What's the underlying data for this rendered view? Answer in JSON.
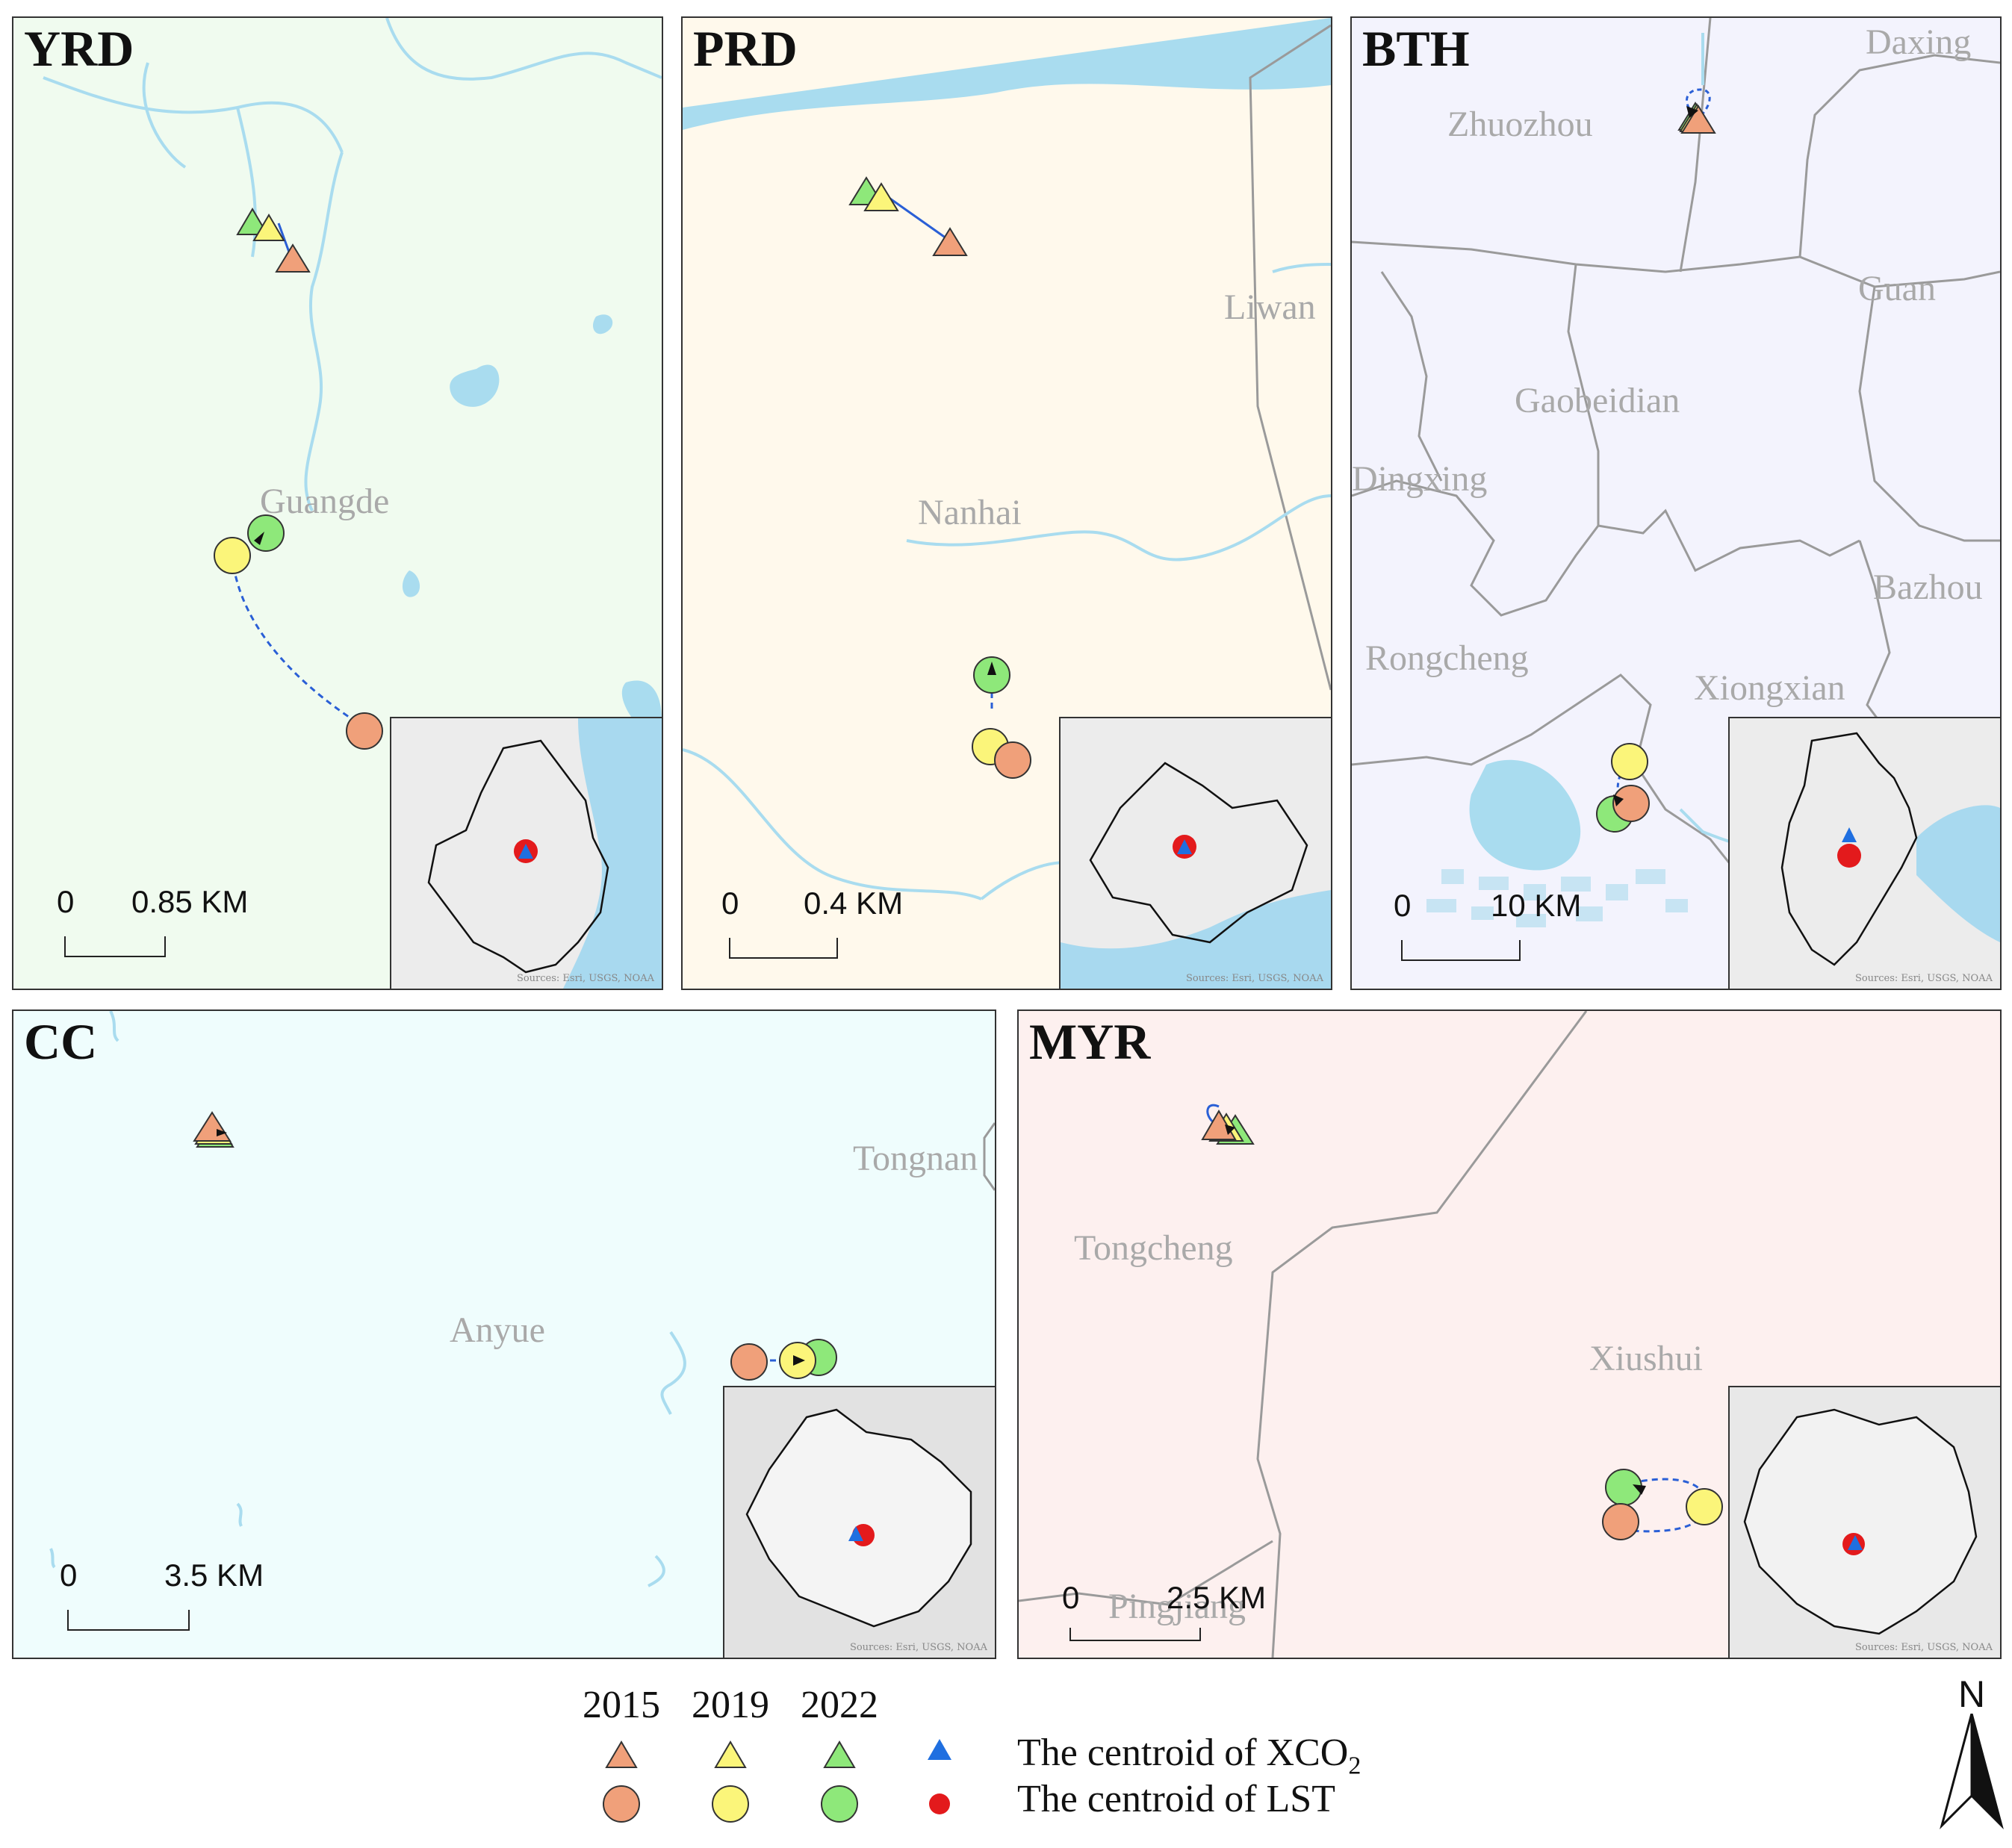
{
  "colors": {
    "y2015": "#f0a07a",
    "y2019": "#fbf57a",
    "y2022": "#8ee87a",
    "xco2_centroid": "#1f6fe0",
    "lst_centroid": "#e31a1c",
    "river": "#a9dcef",
    "boundary": "#9a9a9a",
    "track": "#2a5fd6"
  },
  "panels": {
    "yrd": {
      "title": "YRD",
      "background": "#f0fbef",
      "places": [
        "Guangde"
      ],
      "scale": {
        "zero": "0",
        "distance": "0.85 KM"
      },
      "inset_source": "Sources: Esri, USGS, NOAA"
    },
    "prd": {
      "title": "PRD",
      "background": "#fff9ec",
      "places": [
        "Liwan",
        "Nanhai"
      ],
      "scale": {
        "zero": "0",
        "distance": "0.4 KM"
      },
      "inset_source": "Sources: Esri, USGS, NOAA"
    },
    "bth": {
      "title": "BTH",
      "background": "#f3f3fd",
      "places": [
        "Daxing",
        "Zhuozhou",
        "Guan",
        "Gaobeidian",
        "Dingxing",
        "Bazhou",
        "Rongcheng",
        "Xiongxian"
      ],
      "scale": {
        "zero": "0",
        "distance": "10 KM"
      },
      "inset_source": "Sources: Esri, USGS, NOAA"
    },
    "cc": {
      "title": "CC",
      "background": "#effdfd",
      "places": [
        "Tongnan",
        "Anyue"
      ],
      "scale": {
        "zero": "0",
        "distance": "3.5 KM"
      },
      "inset_source": "Sources: Esri, USGS, NOAA"
    },
    "myr": {
      "title": "MYR",
      "background": "#fdf0ef",
      "places": [
        "Tongcheng",
        "Xiushui",
        "Pingjiang"
      ],
      "scale": {
        "zero": "0",
        "distance": "2.5 KM"
      },
      "inset_source": "Sources: Esri, USGS, NOAA"
    }
  },
  "legend": {
    "years": [
      "2015",
      "2019",
      "2022"
    ],
    "xco2_label": "The centroid of XCO",
    "xco2_subscript": "2",
    "lst_label": "The centroid of LST"
  },
  "north_arrow": {
    "label": "N"
  }
}
